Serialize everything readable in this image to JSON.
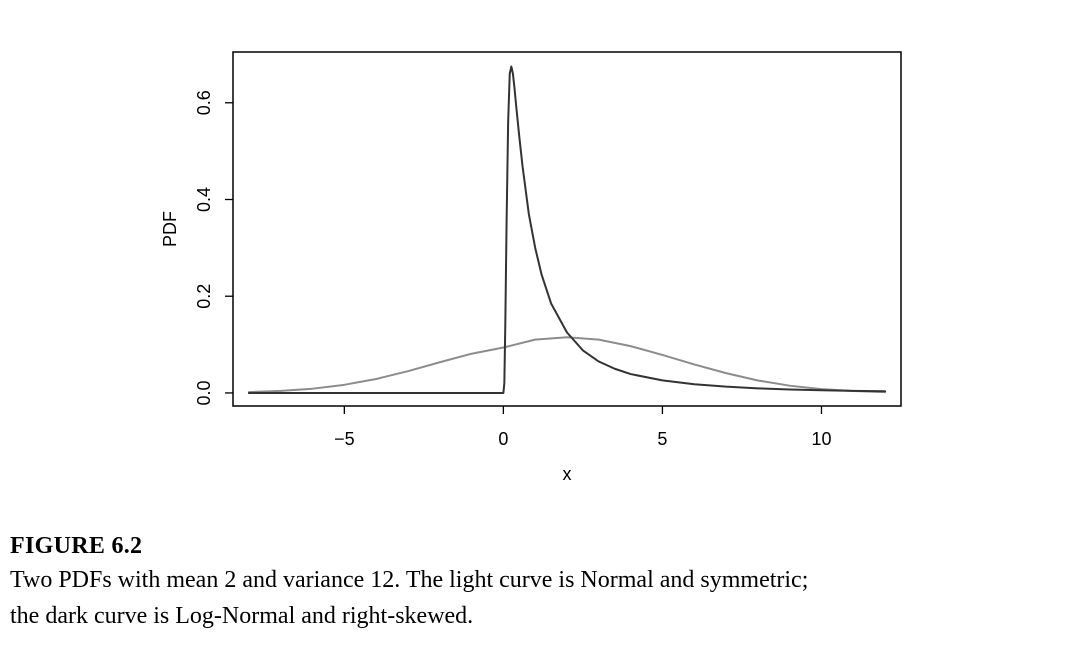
{
  "chart_data": {
    "type": "line",
    "title": "",
    "xlabel": "x",
    "ylabel": "PDF",
    "xlim": [
      -8.5,
      12.5
    ],
    "ylim": [
      -0.027,
      0.705
    ],
    "xticks": [
      -5,
      0,
      5,
      10
    ],
    "xtick_labels": [
      "−5",
      "0",
      "5",
      "10"
    ],
    "yticks": [
      0.0,
      0.2,
      0.4,
      0.6
    ],
    "ytick_labels": [
      "0.0",
      "0.2",
      "0.4",
      "0.6"
    ],
    "grid": false,
    "legend": "none",
    "series": [
      {
        "shade": "light",
        "color": "#8c8c8c",
        "x": [
          -8,
          -7,
          -6,
          -5,
          -4,
          -3,
          -2,
          -1,
          0,
          1,
          2,
          3,
          4,
          5,
          6,
          7,
          8,
          9,
          10,
          11,
          12
        ],
        "y": [
          0.0018,
          0.0042,
          0.0088,
          0.0168,
          0.0289,
          0.045,
          0.0635,
          0.0811,
          0.0939,
          0.1102,
          0.1152,
          0.1102,
          0.0968,
          0.0786,
          0.059,
          0.041,
          0.0258,
          0.015,
          0.008,
          0.0039,
          0.0018
        ]
      },
      {
        "shade": "dark",
        "color": "#333333",
        "x": [
          -8,
          -0.01,
          0.0,
          0.03,
          0.06,
          0.1,
          0.15,
          0.2,
          0.25,
          0.3,
          0.35,
          0.4,
          0.5,
          0.6,
          0.7,
          0.8,
          1.0,
          1.2,
          1.5,
          2.0,
          2.5,
          3.0,
          3.5,
          4.0,
          5.0,
          6.0,
          7.0,
          8.0,
          9.0,
          10.0,
          11.0,
          12.0
        ],
        "y": [
          0.0,
          0.0,
          0.0,
          0.02,
          0.14,
          0.35,
          0.56,
          0.66,
          0.675,
          0.66,
          0.63,
          0.595,
          0.53,
          0.47,
          0.42,
          0.37,
          0.3,
          0.245,
          0.185,
          0.125,
          0.088,
          0.065,
          0.05,
          0.039,
          0.026,
          0.018,
          0.013,
          0.0095,
          0.007,
          0.0055,
          0.0043,
          0.0035
        ]
      }
    ]
  },
  "caption": {
    "label": "FIGURE 6.2",
    "lines": [
      "Two PDFs with mean 2 and variance 12. The light curve is Normal and symmetric;",
      "the dark curve is Log-Normal and right-skewed."
    ]
  }
}
